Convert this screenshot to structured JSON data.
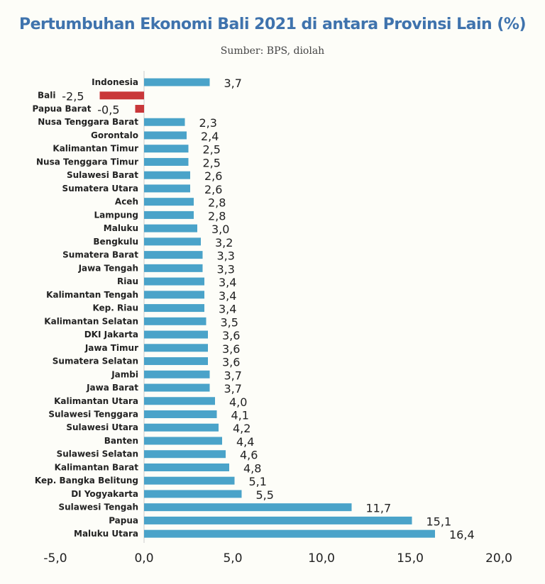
{
  "chart_data": {
    "type": "bar",
    "orientation": "horizontal",
    "title": "Pertumbuhan Ekonomi Bali 2021 di antara Provinsi Lain (%)",
    "subtitle": "Sumber: BPS, diolah",
    "xlim": [
      -5,
      20
    ],
    "xticks": [
      -5,
      0,
      5,
      10,
      15,
      20
    ],
    "xtick_labels": [
      "-5,0",
      "0,0",
      "5,0",
      "10,0",
      "15,0",
      "20,0"
    ],
    "grid": false,
    "colors": {
      "positive": "#4aa3c9",
      "negative": "#c9373a",
      "title": "#3f73ad"
    },
    "categories": [
      "Indonesia",
      "Bali",
      "Papua Barat",
      "Nusa Tenggara Barat",
      "Gorontalo",
      "Kalimantan Timur",
      "Nusa Tenggara Timur",
      "Sulawesi Barat",
      "Sumatera Utara",
      "Aceh",
      "Lampung",
      "Maluku",
      "Bengkulu",
      "Sumatera Barat",
      "Jawa Tengah",
      "Riau",
      "Kalimantan Tengah",
      "Kep. Riau",
      "Kalimantan Selatan",
      "DKI Jakarta",
      "Jawa Timur",
      "Sumatera Selatan",
      "Jambi",
      "Jawa Barat",
      "Kalimantan Utara",
      "Sulawesi Tenggara",
      "Sulawesi Utara",
      "Banten",
      "Sulawesi Selatan",
      "Kalimantan Barat",
      "Kep. Bangka Belitung",
      "DI Yogyakarta",
      "Sulawesi Tengah",
      "Papua",
      "Maluku Utara"
    ],
    "values": [
      3.7,
      -2.5,
      -0.5,
      2.3,
      2.4,
      2.5,
      2.5,
      2.6,
      2.6,
      2.8,
      2.8,
      3.0,
      3.2,
      3.3,
      3.3,
      3.4,
      3.4,
      3.4,
      3.5,
      3.6,
      3.6,
      3.6,
      3.7,
      3.7,
      4.0,
      4.1,
      4.2,
      4.4,
      4.6,
      4.8,
      5.1,
      5.5,
      11.7,
      15.1,
      16.4
    ],
    "value_labels": [
      "3,7",
      "-2,5",
      "-0,5",
      "2,3",
      "2,4",
      "2,5",
      "2,5",
      "2,6",
      "2,6",
      "2,8",
      "2,8",
      "3,0",
      "3,2",
      "3,3",
      "3,3",
      "3,4",
      "3,4",
      "3,4",
      "3,5",
      "3,6",
      "3,6",
      "3,6",
      "3,7",
      "3,7",
      "4,0",
      "4,1",
      "4,2",
      "4,4",
      "4,6",
      "4,8",
      "5,1",
      "5,5",
      "11,7",
      "15,1",
      "16,4"
    ]
  }
}
